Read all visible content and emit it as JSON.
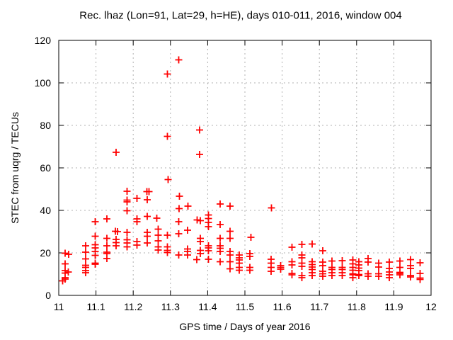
{
  "chart_data": {
    "type": "scatter",
    "title": "Rec. lhaz (Lon=91, Lat=29, h=HE), days 010-011, 2016, window 004",
    "xlabel": "GPS time / Days of year 2016",
    "ylabel": "STEC from uqrg / TECUs",
    "xlim": [
      11,
      12
    ],
    "ylim": [
      0,
      120
    ],
    "xticks": {
      "values": [
        11,
        11.1,
        11.2,
        11.3,
        11.4,
        11.5,
        11.6,
        11.7,
        11.8,
        11.9,
        12
      ],
      "labels": [
        "11",
        "11.1",
        "11.2",
        "11.3",
        "11.4",
        "11.5",
        "11.6",
        "11.7",
        "11.8",
        "11.9",
        "12"
      ]
    },
    "yticks": {
      "values": [
        0,
        20,
        40,
        60,
        80,
        100,
        120
      ],
      "labels": [
        "0",
        "20",
        "40",
        "60",
        "80",
        "100",
        "120"
      ]
    },
    "grid": true,
    "legend": "none",
    "marker": "plus",
    "colors": {
      "marker": "#ff0000",
      "grid": "#b0b0b0",
      "frame": "#000000",
      "background": "#ffffff",
      "text": "#000000"
    },
    "series": [
      {
        "name": "STEC from uqrg",
        "points": [
          [
            11.01,
            6.8
          ],
          [
            11.017,
            19.8
          ],
          [
            11.027,
            19.4
          ],
          [
            11.017,
            14.9
          ],
          [
            11.017,
            11.6
          ],
          [
            11.026,
            11.0
          ],
          [
            11.017,
            10.5
          ],
          [
            11.017,
            8.4
          ],
          [
            11.017,
            7.6
          ],
          [
            11.072,
            23.4
          ],
          [
            11.072,
            20.3
          ],
          [
            11.072,
            17.1
          ],
          [
            11.072,
            14.2
          ],
          [
            11.072,
            13.1
          ],
          [
            11.072,
            11.6
          ],
          [
            11.072,
            10.7
          ],
          [
            11.098,
            34.6
          ],
          [
            11.098,
            27.9
          ],
          [
            11.098,
            23.8
          ],
          [
            11.098,
            22.3
          ],
          [
            11.098,
            20.7
          ],
          [
            11.098,
            18.8
          ],
          [
            11.098,
            15.2
          ],
          [
            11.098,
            14.6
          ],
          [
            11.129,
            36.0
          ],
          [
            11.129,
            26.8
          ],
          [
            11.129,
            23.4
          ],
          [
            11.129,
            20.4
          ],
          [
            11.129,
            19.6
          ],
          [
            11.129,
            17.3
          ],
          [
            11.154,
            67.3
          ],
          [
            11.152,
            30.2
          ],
          [
            11.158,
            30.0
          ],
          [
            11.154,
            26.4
          ],
          [
            11.154,
            24.9
          ],
          [
            11.154,
            23.4
          ],
          [
            11.183,
            49.0
          ],
          [
            11.183,
            44.9
          ],
          [
            11.183,
            44.0
          ],
          [
            11.183,
            39.8
          ],
          [
            11.183,
            29.6
          ],
          [
            11.183,
            26.2
          ],
          [
            11.183,
            24.6
          ],
          [
            11.183,
            22.9
          ],
          [
            11.21,
            45.6
          ],
          [
            11.21,
            36.0
          ],
          [
            11.21,
            34.7
          ],
          [
            11.21,
            25.4
          ],
          [
            11.21,
            23.7
          ],
          [
            11.237,
            48.9
          ],
          [
            11.242,
            48.9
          ],
          [
            11.238,
            45.0
          ],
          [
            11.238,
            37.2
          ],
          [
            11.238,
            29.6
          ],
          [
            11.238,
            27.9
          ],
          [
            11.238,
            24.6
          ],
          [
            11.263,
            36.3
          ],
          [
            11.267,
            31.2
          ],
          [
            11.267,
            28.4
          ],
          [
            11.267,
            25.7
          ],
          [
            11.267,
            22.9
          ],
          [
            11.267,
            21.4
          ],
          [
            11.292,
            104.2
          ],
          [
            11.292,
            74.9
          ],
          [
            11.294,
            54.5
          ],
          [
            11.292,
            28.4
          ],
          [
            11.292,
            22.9
          ],
          [
            11.292,
            21.2
          ],
          [
            11.292,
            20.1
          ],
          [
            11.322,
            110.9
          ],
          [
            11.324,
            46.7
          ],
          [
            11.323,
            40.9
          ],
          [
            11.322,
            34.6
          ],
          [
            11.322,
            29.0
          ],
          [
            11.322,
            19.0
          ],
          [
            11.347,
            42.0
          ],
          [
            11.346,
            30.7
          ],
          [
            11.346,
            21.8
          ],
          [
            11.346,
            20.7
          ],
          [
            11.346,
            19.0
          ],
          [
            11.378,
            77.9
          ],
          [
            11.378,
            66.4
          ],
          [
            11.372,
            35.5
          ],
          [
            11.38,
            35.2
          ],
          [
            11.38,
            26.8
          ],
          [
            11.38,
            25.4
          ],
          [
            11.38,
            21.2
          ],
          [
            11.38,
            19.6
          ],
          [
            11.371,
            16.8
          ],
          [
            11.402,
            37.9
          ],
          [
            11.402,
            36.2
          ],
          [
            11.402,
            34.3
          ],
          [
            11.402,
            32.3
          ],
          [
            11.402,
            23.4
          ],
          [
            11.402,
            22.3
          ],
          [
            11.402,
            21.0
          ],
          [
            11.402,
            17.0
          ],
          [
            11.433,
            43.0
          ],
          [
            11.433,
            33.4
          ],
          [
            11.433,
            26.8
          ],
          [
            11.433,
            23.4
          ],
          [
            11.433,
            22.1
          ],
          [
            11.433,
            20.7
          ],
          [
            11.433,
            15.9
          ],
          [
            11.46,
            42.0
          ],
          [
            11.46,
            30.1
          ],
          [
            11.46,
            26.8
          ],
          [
            11.46,
            20.7
          ],
          [
            11.46,
            19.0
          ],
          [
            11.46,
            15.9
          ],
          [
            11.46,
            12.5
          ],
          [
            11.485,
            19.0
          ],
          [
            11.485,
            17.7
          ],
          [
            11.485,
            16.6
          ],
          [
            11.485,
            15.1
          ],
          [
            11.485,
            13.2
          ],
          [
            11.485,
            11.8
          ],
          [
            11.516,
            27.3
          ],
          [
            11.513,
            19.6
          ],
          [
            11.513,
            18.4
          ],
          [
            11.513,
            13.2
          ],
          [
            11.513,
            11.8
          ],
          [
            11.571,
            41.2
          ],
          [
            11.57,
            17.0
          ],
          [
            11.57,
            15.1
          ],
          [
            11.57,
            13.2
          ],
          [
            11.57,
            11.4
          ],
          [
            11.596,
            14.0
          ],
          [
            11.596,
            13.2
          ],
          [
            11.596,
            12.3
          ],
          [
            11.626,
            22.6
          ],
          [
            11.626,
            15.9
          ],
          [
            11.626,
            14.3
          ],
          [
            11.626,
            10.3
          ],
          [
            11.626,
            9.6
          ],
          [
            11.653,
            24.0
          ],
          [
            11.653,
            19.0
          ],
          [
            11.653,
            17.7
          ],
          [
            11.653,
            15.1
          ],
          [
            11.653,
            13.7
          ],
          [
            11.653,
            9.3
          ],
          [
            11.653,
            8.4
          ],
          [
            11.681,
            24.2
          ],
          [
            11.681,
            15.9
          ],
          [
            11.681,
            14.5
          ],
          [
            11.681,
            13.4
          ],
          [
            11.681,
            12.1
          ],
          [
            11.681,
            10.7
          ],
          [
            11.681,
            9.3
          ],
          [
            11.709,
            21.0
          ],
          [
            11.709,
            15.7
          ],
          [
            11.709,
            14.0
          ],
          [
            11.709,
            11.4
          ],
          [
            11.709,
            10.1
          ],
          [
            11.709,
            9.0
          ],
          [
            11.734,
            16.2
          ],
          [
            11.734,
            13.2
          ],
          [
            11.734,
            12.1
          ],
          [
            11.734,
            10.7
          ],
          [
            11.734,
            9.3
          ],
          [
            11.761,
            16.4
          ],
          [
            11.761,
            13.2
          ],
          [
            11.761,
            12.1
          ],
          [
            11.761,
            10.7
          ],
          [
            11.761,
            9.3
          ],
          [
            11.79,
            16.6
          ],
          [
            11.79,
            14.8
          ],
          [
            11.79,
            13.2
          ],
          [
            11.79,
            11.8
          ],
          [
            11.79,
            10.1
          ],
          [
            11.79,
            9.6
          ],
          [
            11.79,
            8.4
          ],
          [
            11.806,
            15.9
          ],
          [
            11.806,
            14.3
          ],
          [
            11.806,
            12.9
          ],
          [
            11.806,
            11.6
          ],
          [
            11.806,
            9.8
          ],
          [
            11.806,
            9.3
          ],
          [
            11.831,
            17.3
          ],
          [
            11.831,
            15.7
          ],
          [
            11.831,
            10.1
          ],
          [
            11.831,
            9.0
          ],
          [
            11.859,
            15.1
          ],
          [
            11.859,
            13.4
          ],
          [
            11.859,
            10.1
          ],
          [
            11.859,
            9.0
          ],
          [
            11.888,
            15.7
          ],
          [
            11.888,
            12.6
          ],
          [
            11.888,
            11.0
          ],
          [
            11.888,
            9.6
          ],
          [
            11.888,
            8.4
          ],
          [
            11.916,
            16.2
          ],
          [
            11.916,
            13.2
          ],
          [
            11.916,
            10.9
          ],
          [
            11.916,
            10.3
          ],
          [
            11.916,
            9.6
          ],
          [
            11.945,
            16.8
          ],
          [
            11.945,
            14.0
          ],
          [
            11.945,
            12.6
          ],
          [
            11.945,
            9.3
          ],
          [
            11.945,
            8.6
          ],
          [
            11.971,
            15.4
          ],
          [
            11.971,
            10.4
          ],
          [
            11.971,
            8.2
          ],
          [
            11.971,
            7.5
          ]
        ]
      }
    ]
  }
}
